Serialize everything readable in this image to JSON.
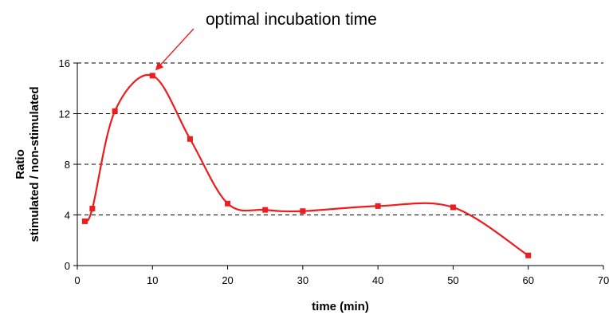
{
  "chart_data": {
    "type": "line",
    "title": "",
    "xlabel": "time (min)",
    "ylabel_lines": [
      "Ratio",
      "stimulated / non-stimulated"
    ],
    "xlim": [
      0,
      70
    ],
    "ylim": [
      0,
      16
    ],
    "xticks": [
      0,
      10,
      20,
      30,
      40,
      50,
      60,
      70
    ],
    "yticks": [
      0,
      4,
      8,
      12,
      16
    ],
    "grid": "horizontal dashed",
    "smooth": true,
    "series": [
      {
        "color": "#ee1c1c",
        "marker": "square",
        "x": [
          1,
          2,
          5,
          10,
          15,
          20,
          25,
          30,
          40,
          50,
          60
        ],
        "y": [
          3.5,
          4.5,
          12.2,
          15.0,
          10.0,
          4.9,
          4.4,
          4.3,
          4.7,
          4.6,
          0.8
        ]
      }
    ],
    "annotations": [
      {
        "text": "optimal incubation time",
        "points_to": {
          "x": 10,
          "y": 15.0
        }
      }
    ]
  }
}
